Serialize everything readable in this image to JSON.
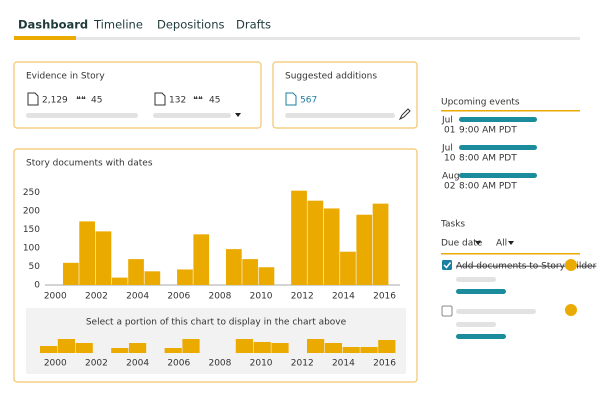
{
  "tabs": [
    "Dashboard",
    "Timeline",
    "Depositions",
    "Drafts"
  ],
  "evidence": {
    "title": "Evidence in Story",
    "docs": "2,129",
    "quotes": "45",
    "docs2": "132",
    "quotes2": "45"
  },
  "suggested": {
    "title": "Suggested additions",
    "count": "567"
  },
  "chart_data": {
    "type": "bar",
    "title": "Story documents with dates",
    "categories": [
      null,
      null,
      null,
      null,
      null,
      null,
      null,
      null,
      null,
      null,
      null,
      null,
      null,
      null,
      null,
      null,
      null,
      null,
      null,
      null
    ],
    "values": [
      60,
      172,
      145,
      20,
      70,
      37,
      null,
      42,
      137,
      null,
      97,
      70,
      48,
      null,
      255,
      228,
      207,
      90,
      190,
      220
    ],
    "color": "#eaaa00",
    "ylim": [
      0,
      265
    ],
    "yticks": [
      0,
      50,
      100,
      150,
      200,
      250
    ],
    "xlim": [
      1999.5,
      2016.75
    ],
    "xticks": [
      2000,
      2002,
      2004,
      2006,
      2008,
      2010,
      2012,
      2014,
      2016
    ]
  },
  "overview": {
    "type": "bar",
    "caption": "Select a portion of this chart to display in the chart above",
    "values": [
      7,
      14,
      10,
      null,
      5,
      10,
      null,
      5,
      14,
      null,
      null,
      14,
      11,
      10,
      null,
      14,
      10,
      6,
      6,
      13
    ],
    "xticks": [
      2000,
      2002,
      2004,
      2006,
      2008,
      2010,
      2012,
      2014,
      2016
    ]
  },
  "events": {
    "title": "Upcoming events",
    "items": [
      {
        "month": "Jul",
        "day": "01",
        "time": "9:00 AM PDT"
      },
      {
        "month": "Jul",
        "day": "10",
        "time": "8:00 AM PDT"
      },
      {
        "month": "Aug",
        "day": "02",
        "time": "8:00 AM PDT"
      }
    ]
  },
  "tasks": {
    "title": "Tasks",
    "filter1": "Due date",
    "filter2": "All",
    "items": [
      "Add documents to Storybuilder"
    ]
  }
}
